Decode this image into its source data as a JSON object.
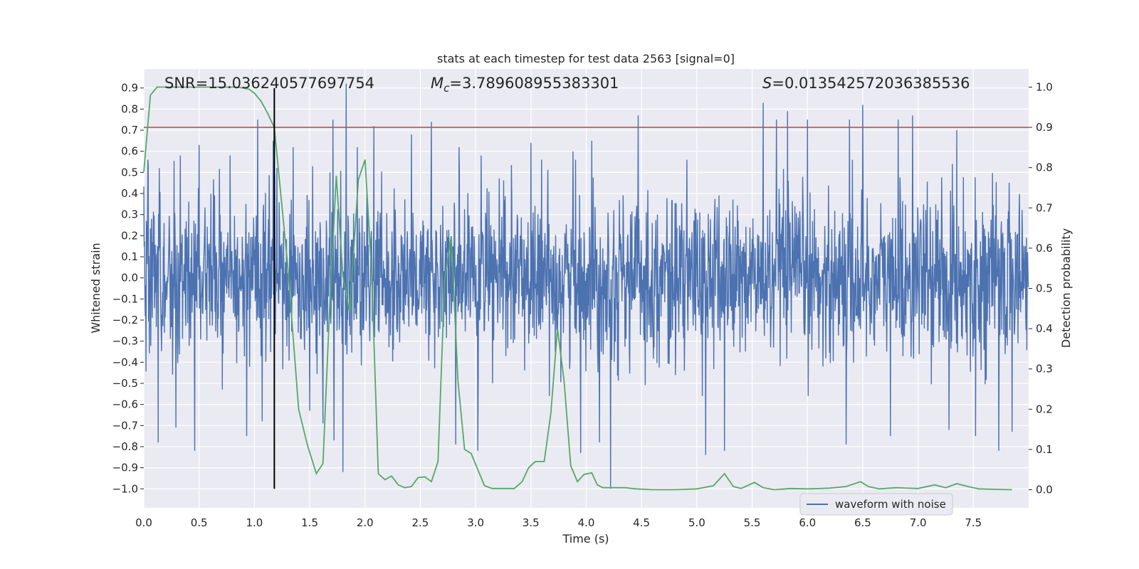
{
  "chart_data": {
    "type": "line",
    "title": "stats at each timestep for test data 2563 [signal=0]",
    "xlabel": "Time (s)",
    "ylabel": "Whitened strain",
    "y2label": "Detection probability",
    "xlim": [
      0.0,
      8.0
    ],
    "ylim": [
      -1.09,
      0.99
    ],
    "y2lim": [
      -0.045,
      1.045
    ],
    "xticks": [
      "0.0",
      "0.5",
      "1.0",
      "1.5",
      "2.0",
      "2.5",
      "3.0",
      "3.5",
      "4.0",
      "4.5",
      "5.0",
      "5.5",
      "6.0",
      "6.5",
      "7.0",
      "7.5"
    ],
    "yticks": [
      "0.9",
      "0.8",
      "0.7",
      "0.6",
      "0.5",
      "0.4",
      "0.3",
      "0.2",
      "0.1",
      "0.0",
      "-0.1",
      "-0.2",
      "-0.3",
      "-0.4",
      "-0.5",
      "-0.6",
      "-0.7",
      "-0.8",
      "-0.9",
      "-1.0"
    ],
    "y2ticks": [
      "1.0",
      "0.9",
      "0.8",
      "0.7",
      "0.6",
      "0.5",
      "0.4",
      "0.3",
      "0.2",
      "0.1",
      "0.0"
    ],
    "grid": true,
    "legend": {
      "position": "bottom-right",
      "entries": [
        "waveform with noise"
      ]
    },
    "annotations": {
      "snr": "SNR=15.036240577697754",
      "mc_symbol": "M",
      "mc_sub": "c",
      "mc_value": "=3.789608955383301",
      "s_symbol": "S",
      "s_value": "=0.013542572036385536"
    },
    "threshold": {
      "value": 0.9,
      "axis": "right"
    },
    "marker_time": 1.18,
    "series": [
      {
        "name": "waveform with noise",
        "axis": "left",
        "kind": "noise",
        "color": "#4c72b0",
        "envelope_upper": 0.4,
        "envelope_lower": -0.4,
        "spikes_positive": [
          [
            0.04,
            0.53
          ],
          [
            0.14,
            0.52
          ],
          [
            0.33,
            0.58
          ],
          [
            0.5,
            0.63
          ],
          [
            0.78,
            0.58
          ],
          [
            1.03,
            0.75
          ],
          [
            1.17,
            0.65
          ],
          [
            1.35,
            0.62
          ],
          [
            1.62,
            0.6
          ],
          [
            1.71,
            0.75
          ],
          [
            1.8,
            0.88
          ],
          [
            1.83,
            0.92
          ],
          [
            1.93,
            0.62
          ],
          [
            2.08,
            0.72
          ],
          [
            2.42,
            0.68
          ],
          [
            2.6,
            0.74
          ],
          [
            2.85,
            0.62
          ],
          [
            3.05,
            0.58
          ],
          [
            3.5,
            0.64
          ],
          [
            3.88,
            0.6
          ],
          [
            4.05,
            0.65
          ],
          [
            4.47,
            0.77
          ],
          [
            5.6,
            0.83
          ],
          [
            5.72,
            0.75
          ],
          [
            5.82,
            0.79
          ],
          [
            6.0,
            0.75
          ],
          [
            6.38,
            0.75
          ],
          [
            6.5,
            0.82
          ],
          [
            6.82,
            0.75
          ],
          [
            6.95,
            0.77
          ],
          [
            7.35,
            0.7
          ],
          [
            7.52,
            0.63
          ]
        ],
        "spikes_negative": [
          [
            0.13,
            -0.78
          ],
          [
            0.29,
            -0.71
          ],
          [
            0.46,
            -0.82
          ],
          [
            0.93,
            -0.75
          ],
          [
            1.07,
            -0.68
          ],
          [
            1.5,
            -0.63
          ],
          [
            1.62,
            -0.69
          ],
          [
            1.72,
            -0.77
          ],
          [
            1.8,
            -0.92
          ],
          [
            2.82,
            -0.79
          ],
          [
            3.02,
            -0.82
          ],
          [
            3.95,
            -0.83
          ],
          [
            4.12,
            -0.78
          ],
          [
            4.22,
            -1.0
          ],
          [
            5.08,
            -0.84
          ],
          [
            5.25,
            -0.82
          ],
          [
            6.35,
            -0.79
          ],
          [
            6.75,
            -0.75
          ],
          [
            7.28,
            -0.72
          ],
          [
            7.52,
            -0.75
          ],
          [
            7.73,
            -0.82
          ],
          [
            7.85,
            -0.73
          ]
        ]
      },
      {
        "name": "detection probability",
        "axis": "right",
        "color": "#55a868",
        "points": [
          [
            0.0,
            0.79
          ],
          [
            0.06,
            0.98
          ],
          [
            0.12,
            1.0
          ],
          [
            0.2,
            1.0
          ],
          [
            0.3,
            1.0
          ],
          [
            0.5,
            1.0
          ],
          [
            0.7,
            1.0
          ],
          [
            0.85,
            1.0
          ],
          [
            0.95,
            0.995
          ],
          [
            1.0,
            0.985
          ],
          [
            1.06,
            0.965
          ],
          [
            1.12,
            0.935
          ],
          [
            1.18,
            0.9
          ],
          [
            1.3,
            0.56
          ],
          [
            1.4,
            0.2
          ],
          [
            1.48,
            0.11
          ],
          [
            1.56,
            0.04
          ],
          [
            1.62,
            0.065
          ],
          [
            1.68,
            0.45
          ],
          [
            1.74,
            0.78
          ],
          [
            1.8,
            0.53
          ],
          [
            1.86,
            0.44
          ],
          [
            1.94,
            0.77
          ],
          [
            2.0,
            0.82
          ],
          [
            2.06,
            0.54
          ],
          [
            2.12,
            0.04
          ],
          [
            2.18,
            0.025
          ],
          [
            2.24,
            0.034
          ],
          [
            2.3,
            0.012
          ],
          [
            2.36,
            0.005
          ],
          [
            2.42,
            0.008
          ],
          [
            2.48,
            0.03
          ],
          [
            2.54,
            0.032
          ],
          [
            2.6,
            0.02
          ],
          [
            2.66,
            0.07
          ],
          [
            2.72,
            0.52
          ],
          [
            2.78,
            0.63
          ],
          [
            2.84,
            0.27
          ],
          [
            2.9,
            0.1
          ],
          [
            2.96,
            0.09
          ],
          [
            3.02,
            0.05
          ],
          [
            3.08,
            0.01
          ],
          [
            3.15,
            0.003
          ],
          [
            3.25,
            0.003
          ],
          [
            3.35,
            0.003
          ],
          [
            3.42,
            0.02
          ],
          [
            3.48,
            0.055
          ],
          [
            3.54,
            0.07
          ],
          [
            3.62,
            0.07
          ],
          [
            3.68,
            0.19
          ],
          [
            3.74,
            0.4
          ],
          [
            3.8,
            0.27
          ],
          [
            3.86,
            0.06
          ],
          [
            3.92,
            0.02
          ],
          [
            3.98,
            0.038
          ],
          [
            4.05,
            0.042
          ],
          [
            4.1,
            0.012
          ],
          [
            4.15,
            0.005
          ],
          [
            4.25,
            0.005
          ],
          [
            4.35,
            0.005
          ],
          [
            4.45,
            0.002
          ],
          [
            4.6,
            0.0
          ],
          [
            4.8,
            0.0
          ],
          [
            5.0,
            0.002
          ],
          [
            5.15,
            0.01
          ],
          [
            5.25,
            0.04
          ],
          [
            5.33,
            0.008
          ],
          [
            5.4,
            0.003
          ],
          [
            5.52,
            0.018
          ],
          [
            5.6,
            0.005
          ],
          [
            5.7,
            0.0
          ],
          [
            5.85,
            0.003
          ],
          [
            6.0,
            0.002
          ],
          [
            6.2,
            0.004
          ],
          [
            6.35,
            0.008
          ],
          [
            6.48,
            0.02
          ],
          [
            6.55,
            0.008
          ],
          [
            6.65,
            0.002
          ],
          [
            6.8,
            0.005
          ],
          [
            7.0,
            0.003
          ],
          [
            7.15,
            0.012
          ],
          [
            7.25,
            0.005
          ],
          [
            7.35,
            0.015
          ],
          [
            7.45,
            0.008
          ],
          [
            7.55,
            0.002
          ],
          [
            7.7,
            0.001
          ],
          [
            7.85,
            0.0
          ]
        ]
      }
    ]
  }
}
